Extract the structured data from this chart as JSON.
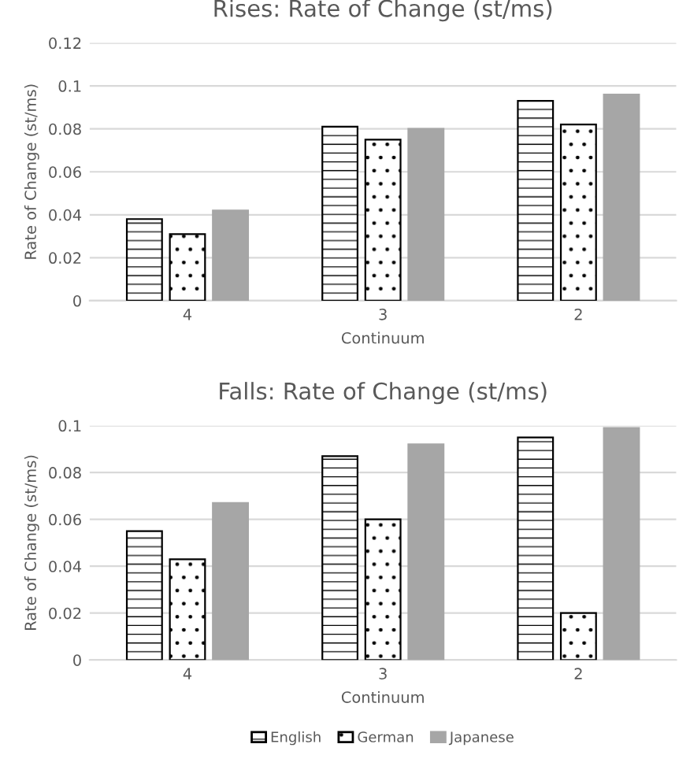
{
  "chart_data": [
    {
      "type": "bar",
      "title": "Rises: Rate of Change (st/ms)",
      "xlabel": "Continuum",
      "ylabel": "Rate of Change (st/ms)",
      "categories": [
        "4",
        "3",
        "2"
      ],
      "series": [
        {
          "color": "#000000",
          "values": [
            0.038,
            0.081,
            0.093
          ]
        },
        {
          "color": "#000000",
          "values": [
            0.031,
            0.075,
            0.082
          ]
        },
        {
          "color": "#a6a6a6",
          "values": [
            0.042,
            0.08,
            0.096
          ]
        }
      ],
      "ylim": [
        0,
        0.12
      ],
      "yticks": [
        0,
        0.02,
        0.04,
        0.06,
        0.08,
        {
          "value": 0.1,
          "label": "0.1"
        },
        0.12
      ],
      "grid": "y"
    },
    {
      "type": "bar",
      "title": "Falls: Rate of Change (st/ms)",
      "xlabel": "Continuum",
      "ylabel": "Rate of Change (st/ms)",
      "categories": [
        "4",
        "3",
        "2"
      ],
      "series": [
        {
          "name": "English",
          "color": "#000000",
          "values": [
            0.055,
            0.087,
            0.095
          ]
        },
        {
          "name": "German",
          "color": "#000000",
          "values": [
            0.043,
            0.06,
            0.02
          ]
        },
        {
          "name": "Japanese",
          "color": "#a6a6a6",
          "values": [
            0.067,
            0.092,
            0.099
          ]
        }
      ],
      "ylim": [
        0,
        0.1
      ],
      "yticks": [
        0,
        0.02,
        0.04,
        0.06,
        0.08,
        {
          "value": 0.1,
          "label": "0.1"
        }
      ],
      "grid": "y",
      "legend": "bottom"
    }
  ]
}
